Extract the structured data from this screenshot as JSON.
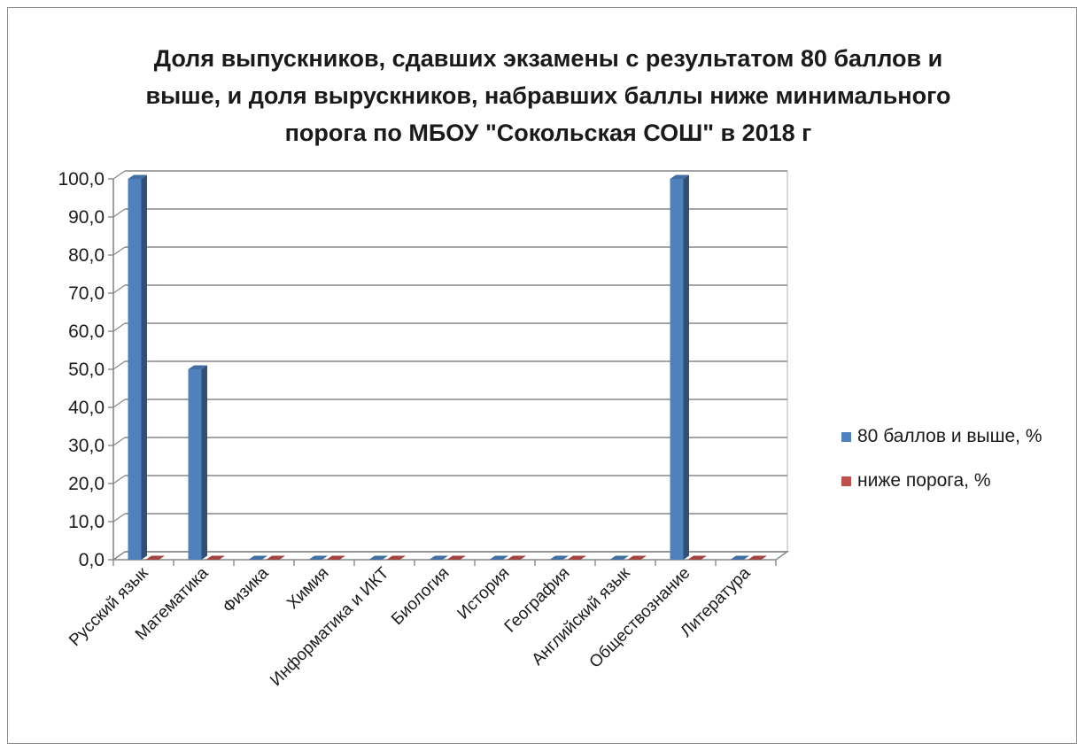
{
  "chart_data": {
    "type": "bar",
    "title_lines": [
      "Доля выпускников, сдавших экзамены с результатом 80 баллов и",
      "выше, и доля вырускников, набравших баллы ниже минимального",
      "порога по МБОУ \"Сокольская СОШ\" в 2018 г"
    ],
    "categories": [
      "Русский язык",
      "Математика",
      "Физика",
      "Химия",
      "Информатика и ИКТ",
      "Биология",
      "История",
      "География",
      "Английский язык",
      "Обществознание",
      "Литература"
    ],
    "series": [
      {
        "name": "80 баллов и выше, %",
        "color": "#4f81bd",
        "values": [
          100,
          50,
          0,
          0,
          0,
          0,
          0,
          0,
          0,
          100,
          0
        ]
      },
      {
        "name": "ниже порога, %",
        "color": "#c0504d",
        "values": [
          0,
          0,
          0,
          0,
          0,
          0,
          0,
          0,
          0,
          0,
          0
        ]
      }
    ],
    "ylim": [
      0,
      100
    ],
    "ytick_step": 10,
    "ytick_labels": [
      "0,0",
      "10,0",
      "20,0",
      "30,0",
      "40,0",
      "50,0",
      "60,0",
      "70,0",
      "80,0",
      "90,0",
      "100,0"
    ],
    "grid": true,
    "legend_position": "right",
    "xlabel": "",
    "ylabel": ""
  }
}
